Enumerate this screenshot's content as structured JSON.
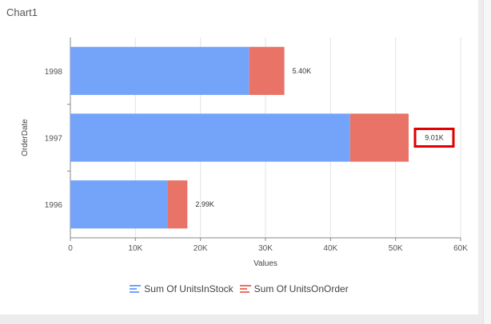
{
  "title": "Chart1",
  "chart_data": {
    "type": "bar",
    "orientation": "horizontal",
    "stacked": true,
    "categories": [
      "1998",
      "1997",
      "1996"
    ],
    "series": [
      {
        "name": "Sum Of UnitsInStock",
        "color": "#74a4f9",
        "values": [
          27500,
          43000,
          15000
        ]
      },
      {
        "name": "Sum Of UnitsOnOrder",
        "color": "#e87366",
        "values": [
          5400,
          9010,
          2990
        ]
      }
    ],
    "data_labels": [
      "5.40K",
      "9.01K",
      "2.99K"
    ],
    "highlighted_label_index": 1,
    "highlight_color": "#e00000",
    "xlabel": "Values",
    "ylabel": "OrderDate",
    "xlim": [
      0,
      60000
    ],
    "xticks": [
      0,
      10000,
      20000,
      30000,
      40000,
      50000,
      60000
    ],
    "xtick_labels": [
      "0",
      "10K",
      "20K",
      "30K",
      "40K",
      "50K",
      "60K"
    ],
    "grid": true,
    "legend_position": "bottom"
  }
}
